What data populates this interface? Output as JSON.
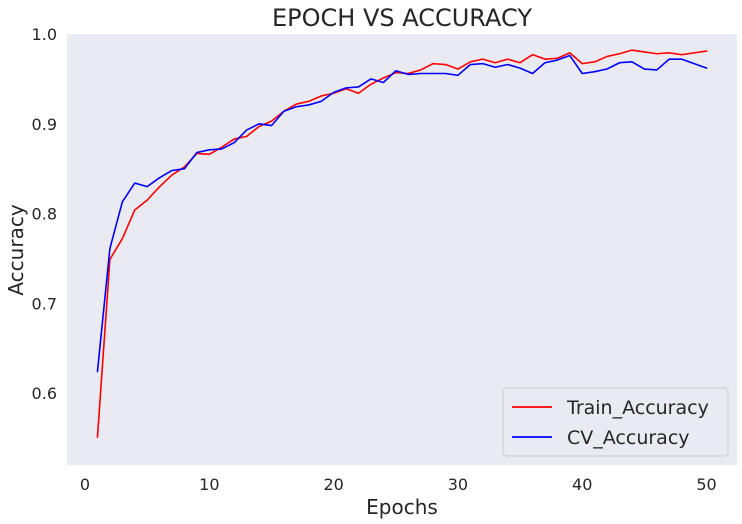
{
  "chart_data": {
    "type": "line",
    "title": "EPOCH VS ACCURACY",
    "xlabel": "Epochs",
    "ylabel": "Accuracy",
    "xlim": [
      -1.45,
      52.45
    ],
    "ylim": [
      0.52,
      1.0
    ],
    "xticks": [
      0,
      10,
      20,
      30,
      40,
      50
    ],
    "yticks": [
      0.6,
      0.7,
      0.8,
      0.9,
      1.0
    ],
    "ytick_labels": [
      "0.6",
      "0.7",
      "0.8",
      "0.9",
      "1.0"
    ],
    "grid": false,
    "legend_position": "lower-right",
    "x": [
      1,
      2,
      3,
      4,
      5,
      6,
      7,
      8,
      9,
      10,
      11,
      12,
      13,
      14,
      15,
      16,
      17,
      18,
      19,
      20,
      21,
      22,
      23,
      24,
      25,
      26,
      27,
      28,
      29,
      30,
      31,
      32,
      33,
      34,
      35,
      36,
      37,
      38,
      39,
      40,
      41,
      42,
      43,
      44,
      45,
      46,
      47,
      48,
      49,
      50
    ],
    "series": [
      {
        "name": "Train_Accuracy",
        "color": "#ff0000",
        "values": [
          0.551,
          0.749,
          0.772,
          0.804,
          0.815,
          0.83,
          0.843,
          0.852,
          0.867,
          0.866,
          0.874,
          0.883,
          0.886,
          0.897,
          0.903,
          0.914,
          0.922,
          0.925,
          0.931,
          0.934,
          0.939,
          0.934,
          0.944,
          0.951,
          0.957,
          0.956,
          0.96,
          0.967,
          0.966,
          0.961,
          0.969,
          0.972,
          0.968,
          0.972,
          0.968,
          0.977,
          0.972,
          0.973,
          0.979,
          0.967,
          0.969,
          0.975,
          0.978,
          0.982,
          0.98,
          0.978,
          0.979,
          0.977,
          0.979,
          0.981
        ]
      },
      {
        "name": "CV_Accuracy",
        "color": "#0000ff",
        "values": [
          0.624,
          0.761,
          0.813,
          0.834,
          0.83,
          0.84,
          0.848,
          0.85,
          0.868,
          0.871,
          0.872,
          0.879,
          0.893,
          0.9,
          0.898,
          0.914,
          0.919,
          0.921,
          0.925,
          0.935,
          0.94,
          0.941,
          0.95,
          0.946,
          0.959,
          0.955,
          0.956,
          0.956,
          0.956,
          0.954,
          0.966,
          0.967,
          0.963,
          0.966,
          0.962,
          0.956,
          0.968,
          0.971,
          0.976,
          0.956,
          0.958,
          0.961,
          0.968,
          0.969,
          0.961,
          0.96,
          0.972,
          0.972,
          0.967,
          0.962
        ]
      }
    ]
  }
}
